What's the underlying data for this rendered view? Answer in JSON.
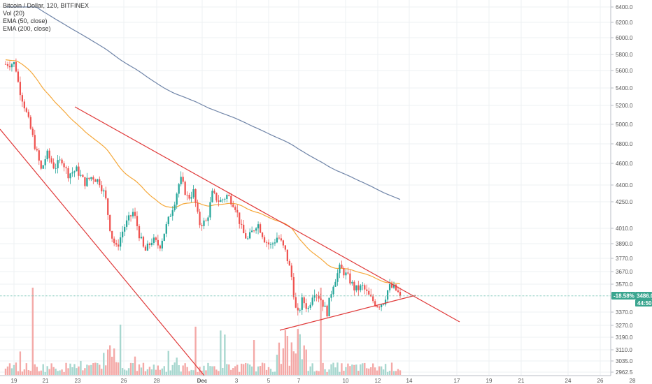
{
  "legend": {
    "title": "Bitcoin / Dollar, 120, BITFINEX",
    "vol": "Vol (20)",
    "ema50": "EMA (50, close)",
    "ema200": "EMA (200, close)"
  },
  "badges": {
    "change": "-18.58%",
    "price": "3486.0",
    "countdown": "44:50"
  },
  "colors": {
    "up": "#26a69a",
    "down": "#ef5350",
    "vol_up": "#a7d7cf",
    "vol_down": "#f4a9a7",
    "ema50": "#f5a83a",
    "ema200": "#7085a8",
    "trendline": "#e03a3a",
    "price_line": "#7fc7b8",
    "badge": "#3aa58f"
  },
  "chart_data": {
    "type": "candlestick",
    "symbol": "Bitcoin / Dollar",
    "interval": "120",
    "exchange": "BITFINEX",
    "y_ticks": [
      6400,
      6200,
      6000,
      5800,
      5600,
      5400,
      5200,
      5000,
      4800,
      4600,
      4400,
      4250,
      4010,
      3890,
      3770,
      3670,
      3570,
      3370,
      3270,
      3190,
      3110,
      3035,
      2962.5
    ],
    "y_tick_labels": [
      "6400.0",
      "6200.0",
      "6000.0",
      "5800.0",
      "5600.0",
      "5400.0",
      "5200.0",
      "5000.0",
      "4800.0",
      "4600.0",
      "4400.0",
      "4250.0",
      "4010.0",
      "3890.0",
      "3770.0",
      "3670.0",
      "3570.0",
      "3370.0",
      "3270.0",
      "3190.0",
      "3110.0",
      "3035.0",
      "2962.5"
    ],
    "x_ticks": [
      "19",
      "21",
      "23",
      "26",
      "28",
      "Dec",
      "3",
      "5",
      "7",
      "10",
      "12",
      "14",
      "17",
      "19",
      "21",
      "24",
      "26",
      "28"
    ],
    "last_price": 3486.0,
    "change_percent": "-18.58%",
    "price_series": [
      {
        "day": 0.0,
        "price": 5680
      },
      {
        "day": 0.5,
        "price": 5690
      },
      {
        "day": 0.7,
        "price": 5420
      },
      {
        "day": 1.2,
        "price": 5050
      },
      {
        "day": 1.6,
        "price": 4750
      },
      {
        "day": 1.9,
        "price": 4530
      },
      {
        "day": 2.2,
        "price": 4700
      },
      {
        "day": 2.6,
        "price": 4560
      },
      {
        "day": 3.0,
        "price": 4640
      },
      {
        "day": 3.3,
        "price": 4500
      },
      {
        "day": 3.8,
        "price": 4540
      },
      {
        "day": 4.2,
        "price": 4420
      },
      {
        "day": 4.6,
        "price": 4480
      },
      {
        "day": 5.0,
        "price": 4430
      },
      {
        "day": 5.3,
        "price": 4300
      },
      {
        "day": 5.6,
        "price": 3970
      },
      {
        "day": 5.9,
        "price": 3850
      },
      {
        "day": 6.3,
        "price": 4020
      },
      {
        "day": 6.8,
        "price": 4160
      },
      {
        "day": 7.1,
        "price": 3970
      },
      {
        "day": 7.4,
        "price": 3820
      },
      {
        "day": 7.8,
        "price": 3920
      },
      {
        "day": 8.2,
        "price": 3870
      },
      {
        "day": 8.6,
        "price": 4050
      },
      {
        "day": 9.0,
        "price": 4260
      },
      {
        "day": 9.3,
        "price": 4460
      },
      {
        "day": 9.7,
        "price": 4280
      },
      {
        "day": 10.0,
        "price": 4340
      },
      {
        "day": 10.3,
        "price": 4050
      },
      {
        "day": 10.7,
        "price": 4070
      },
      {
        "day": 11.0,
        "price": 4320
      },
      {
        "day": 11.4,
        "price": 4250
      },
      {
        "day": 11.8,
        "price": 4310
      },
      {
        "day": 12.2,
        "price": 4220
      },
      {
        "day": 12.6,
        "price": 3980
      },
      {
        "day": 12.9,
        "price": 3920
      },
      {
        "day": 13.4,
        "price": 4060
      },
      {
        "day": 13.8,
        "price": 3920
      },
      {
        "day": 14.1,
        "price": 3870
      },
      {
        "day": 14.5,
        "price": 3950
      },
      {
        "day": 14.9,
        "price": 3820
      },
      {
        "day": 15.2,
        "price": 3650
      },
      {
        "day": 15.5,
        "price": 3330
      },
      {
        "day": 15.8,
        "price": 3460
      },
      {
        "day": 16.1,
        "price": 3390
      },
      {
        "day": 16.4,
        "price": 3530
      },
      {
        "day": 16.8,
        "price": 3460
      },
      {
        "day": 17.1,
        "price": 3360
      },
      {
        "day": 17.4,
        "price": 3560
      },
      {
        "day": 17.8,
        "price": 3700
      },
      {
        "day": 18.2,
        "price": 3630
      },
      {
        "day": 18.6,
        "price": 3530
      },
      {
        "day": 19.0,
        "price": 3550
      },
      {
        "day": 19.4,
        "price": 3470
      },
      {
        "day": 19.8,
        "price": 3420
      },
      {
        "day": 20.1,
        "price": 3440
      },
      {
        "day": 20.4,
        "price": 3550
      },
      {
        "day": 20.7,
        "price": 3540
      },
      {
        "day": 21.0,
        "price": 3486
      }
    ]
  }
}
